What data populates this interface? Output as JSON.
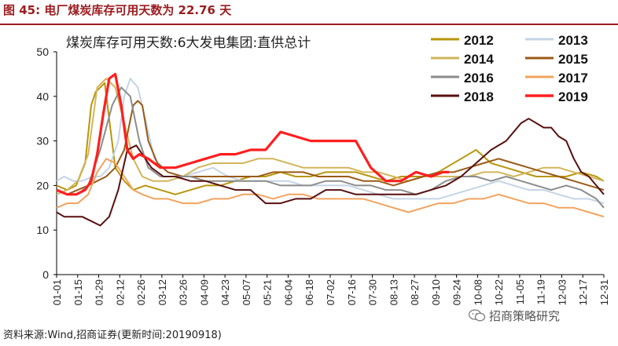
{
  "figure_title": "图 45:  电厂煤炭库存可用天数为 22.76 天",
  "source_note": "资料来源:Wind,招商证券(更新时间:20190918)",
  "watermark": "招商策略研究",
  "watermark_icon": "wechat-icon",
  "colors": {
    "title": "#9b1d20",
    "2012": "#b8960a",
    "2013": "#c4d4e6",
    "2014": "#d2b55b",
    "2015": "#9a5a16",
    "2016": "#8c8c8c",
    "2017": "#f2a35e",
    "2018": "#5a0f0f",
    "2019": "#ff1f1f"
  },
  "chart_data": {
    "type": "line",
    "title": "煤炭库存可用天数:6大发电集团:直供总计",
    "xlabel": "",
    "ylabel": "",
    "ylim": [
      0,
      50
    ],
    "yticks": [
      0,
      10,
      20,
      30,
      40,
      50
    ],
    "grid": false,
    "legend_position": "top-right",
    "x_ticks": [
      "01-01",
      "01-15",
      "01-29",
      "02-12",
      "02-26",
      "03-12",
      "03-26",
      "04-09",
      "04-23",
      "05-07",
      "05-21",
      "06-04",
      "06-18",
      "07-02",
      "07-16",
      "07-30",
      "08-13",
      "08-27",
      "09-10",
      "09-24",
      "10-08",
      "10-22",
      "11-05",
      "11-19",
      "12-03",
      "12-17",
      "12-31"
    ],
    "x_positions_doy": [
      1,
      15,
      29,
      43,
      57,
      71,
      85,
      99,
      113,
      127,
      141,
      155,
      169,
      183,
      197,
      211,
      225,
      239,
      253,
      267,
      281,
      295,
      309,
      323,
      337,
      351,
      365
    ],
    "series": [
      {
        "name": "2012",
        "x": [
          1,
          8,
          14,
          20,
          24,
          27,
          33,
          40,
          46,
          52,
          60,
          70,
          80,
          90,
          100,
          110,
          120,
          130,
          140,
          150,
          160,
          170,
          180,
          190,
          200,
          210,
          220,
          230,
          240,
          250,
          260,
          270,
          280,
          290,
          300,
          310,
          320,
          330,
          340,
          350,
          360,
          365
        ],
        "y": [
          20,
          19,
          20,
          25,
          38,
          41,
          43,
          24,
          21,
          19,
          20,
          19,
          18,
          19,
          20,
          20,
          21,
          22,
          22,
          23,
          22,
          22,
          23,
          23,
          23,
          22,
          21,
          22,
          22,
          22,
          24,
          26,
          28,
          25,
          24,
          23,
          22,
          22,
          22,
          23,
          22,
          21
        ]
      },
      {
        "name": "2013",
        "x": [
          1,
          6,
          12,
          18,
          25,
          30,
          36,
          42,
          46,
          50,
          55,
          60,
          66,
          75,
          85,
          95,
          105,
          115,
          125,
          135,
          145,
          155,
          165,
          175,
          185,
          195,
          205,
          215,
          225,
          235,
          245,
          255,
          265,
          275,
          285,
          295,
          305,
          315,
          325,
          335,
          345,
          355,
          365
        ],
        "y": [
          21,
          22,
          21,
          21,
          22,
          22,
          24,
          30,
          40,
          44,
          42,
          35,
          26,
          23,
          22,
          23,
          24,
          22,
          21,
          21,
          21,
          21,
          20,
          20,
          20,
          20,
          19,
          18,
          17,
          17,
          17,
          17,
          18,
          19,
          20,
          21,
          20,
          19,
          19,
          18,
          17,
          17,
          16
        ]
      },
      {
        "name": "2014",
        "x": [
          1,
          8,
          15,
          22,
          28,
          34,
          40,
          46,
          52,
          58,
          65,
          75,
          85,
          95,
          105,
          115,
          125,
          135,
          145,
          155,
          165,
          175,
          185,
          195,
          205,
          215,
          225,
          235,
          245,
          255,
          265,
          275,
          285,
          295,
          305,
          315,
          325,
          335,
          345,
          355,
          365
        ],
        "y": [
          18,
          19,
          21,
          27,
          42,
          44,
          42,
          34,
          26,
          22,
          21,
          21,
          22,
          24,
          25,
          25,
          25,
          26,
          26,
          25,
          24,
          24,
          24,
          24,
          23,
          23,
          22,
          21,
          22,
          22,
          22,
          22,
          23,
          23,
          22,
          23,
          24,
          24,
          23,
          22,
          21
        ]
      },
      {
        "name": "2015",
        "x": [
          1,
          8,
          15,
          22,
          28,
          34,
          40,
          46,
          52,
          55,
          58,
          62,
          68,
          75,
          85,
          95,
          105,
          115,
          125,
          135,
          145,
          155,
          165,
          175,
          185,
          195,
          205,
          215,
          225,
          235,
          245,
          255,
          265,
          275,
          285,
          295,
          305,
          315,
          325,
          335,
          345,
          355,
          365
        ],
        "y": [
          19,
          18,
          19,
          20,
          21,
          22,
          24,
          28,
          38,
          39,
          38,
          30,
          25,
          23,
          22,
          22,
          22,
          22,
          22,
          22,
          23,
          23,
          23,
          22,
          22,
          22,
          21,
          21,
          20,
          21,
          22,
          23,
          23,
          24,
          25,
          26,
          25,
          24,
          23,
          22,
          21,
          20,
          19
        ]
      },
      {
        "name": "2016",
        "x": [
          1,
          8,
          15,
          22,
          30,
          38,
          44,
          50,
          56,
          62,
          70,
          80,
          90,
          100,
          110,
          120,
          130,
          140,
          150,
          160,
          170,
          180,
          190,
          200,
          210,
          220,
          230,
          240,
          250,
          260,
          270,
          280,
          290,
          300,
          310,
          320,
          330,
          340,
          350,
          360,
          365
        ],
        "y": [
          19,
          18,
          18,
          20,
          28,
          38,
          42,
          40,
          30,
          24,
          22,
          22,
          22,
          21,
          21,
          21,
          21,
          21,
          20,
          20,
          20,
          21,
          21,
          20,
          20,
          19,
          19,
          18,
          19,
          21,
          22,
          22,
          21,
          22,
          21,
          20,
          19,
          20,
          19,
          17,
          15
        ]
      },
      {
        "name": "2017",
        "x": [
          1,
          8,
          15,
          22,
          28,
          34,
          40,
          46,
          52,
          58,
          66,
          75,
          85,
          95,
          105,
          115,
          125,
          135,
          145,
          155,
          165,
          175,
          185,
          195,
          205,
          215,
          225,
          235,
          245,
          255,
          265,
          275,
          285,
          295,
          305,
          315,
          325,
          335,
          345,
          355,
          365
        ],
        "y": [
          15,
          16,
          16,
          18,
          23,
          26,
          25,
          22,
          19,
          18,
          17,
          17,
          16,
          16,
          17,
          17,
          18,
          18,
          17,
          18,
          18,
          17,
          17,
          17,
          17,
          16,
          15,
          14,
          15,
          16,
          16,
          17,
          17,
          18,
          17,
          16,
          16,
          15,
          15,
          14,
          13
        ]
      },
      {
        "name": "2018",
        "x": [
          1,
          6,
          12,
          18,
          24,
          30,
          36,
          42,
          48,
          54,
          58,
          64,
          72,
          80,
          90,
          100,
          110,
          120,
          130,
          140,
          150,
          160,
          170,
          180,
          190,
          200,
          210,
          220,
          230,
          240,
          250,
          260,
          270,
          280,
          290,
          300,
          305,
          310,
          315,
          320,
          325,
          330,
          335,
          340,
          345,
          350,
          355,
          360,
          365
        ],
        "y": [
          14,
          13,
          13,
          13,
          12,
          11,
          13,
          19,
          28,
          29,
          27,
          24,
          22,
          22,
          21,
          21,
          20,
          19,
          19,
          16,
          16,
          17,
          17,
          19,
          19,
          18,
          18,
          18,
          18,
          18,
          19,
          20,
          22,
          25,
          28,
          30,
          32,
          34,
          35,
          34,
          33,
          33,
          31,
          30,
          26,
          23,
          22,
          20,
          18
        ]
      },
      {
        "name": "2019",
        "x": [
          1,
          8,
          14,
          20,
          24,
          28,
          32,
          36,
          40,
          44,
          48,
          52,
          56,
          62,
          70,
          80,
          90,
          100,
          110,
          120,
          130,
          140,
          150,
          160,
          170,
          180,
          190,
          200,
          210,
          220,
          230,
          240,
          250,
          258,
          262
        ],
        "y": [
          19,
          18,
          18,
          19,
          21,
          27,
          36,
          44,
          45,
          38,
          28,
          26,
          27,
          26,
          24,
          24,
          25,
          26,
          27,
          27,
          28,
          28,
          32,
          31,
          30,
          30,
          30,
          30,
          24,
          21,
          21,
          23,
          22,
          23,
          23
        ]
      }
    ]
  }
}
